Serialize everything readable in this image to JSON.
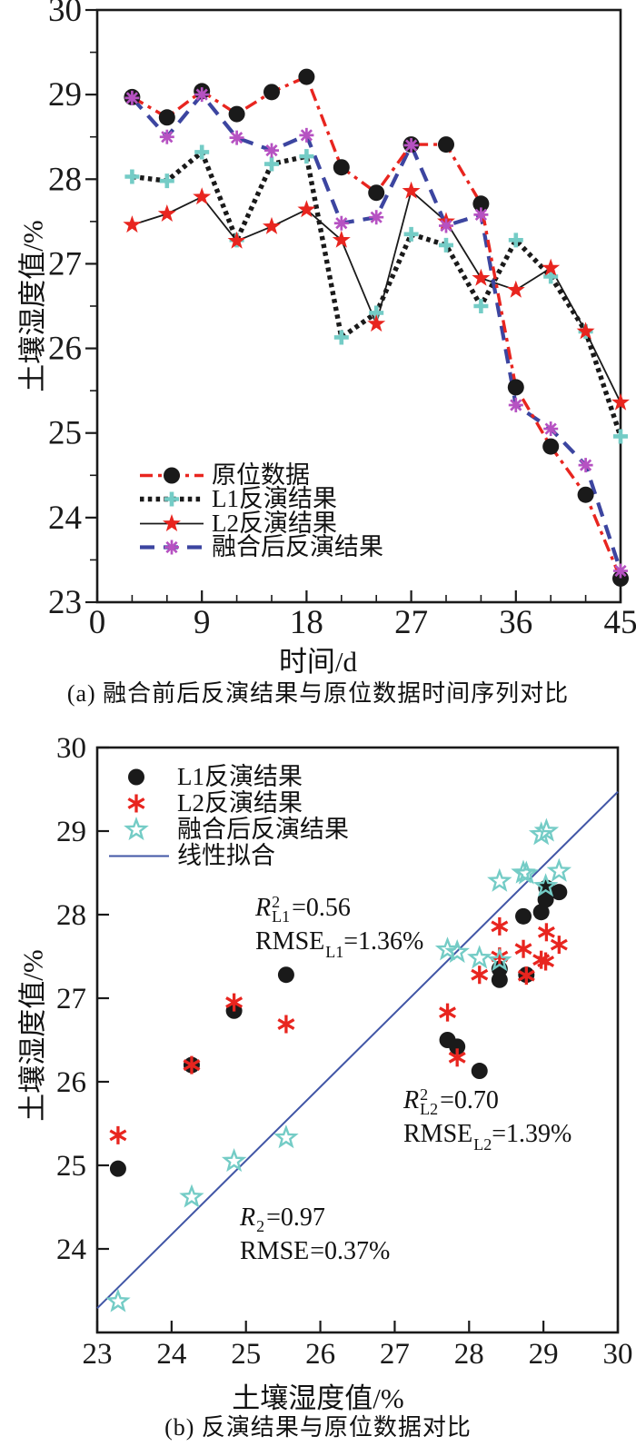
{
  "panel_a": {
    "caption": "(a) 融合前后反演结果与原位数据时间序列对比",
    "xlabel": "时间/d",
    "ylabel": "土壤湿度值/%"
  },
  "panel_b": {
    "caption": "(b) 反演结果与原位数据对比",
    "xlabel": "土壤湿度值/%",
    "ylabel": "土壤湿度值/%",
    "annotations": [
      {
        "r": "R",
        "sup": "2",
        "sub": "L1",
        "r_eq": "=0.56",
        "rmse": "RMSE",
        "rmse_sub": "L1",
        "rmse_eq": "=1.36%"
      },
      {
        "r": "R",
        "sup": "2",
        "sub": "L2",
        "r_eq": "=0.70",
        "rmse": "RMSE",
        "rmse_sub": "L2",
        "rmse_eq": "=1.39%"
      },
      {
        "r": "R",
        "sup": "2",
        "sub": "",
        "r_eq": "=0.97",
        "rmse": "RMSE",
        "rmse_sub": "",
        "rmse_eq": "=0.37%"
      }
    ]
  },
  "colors": {
    "black": "#1a1a1a",
    "red": "#e8251f",
    "blue_dash": "#3c45a0",
    "magenta": "#b652c2",
    "cyan": "#74ccc6",
    "fit_line": "#4156a6"
  },
  "chart_data": [
    {
      "type": "line",
      "title": "(a) 融合前后反演结果与原位数据时间序列对比",
      "xlabel": "时间/d",
      "ylabel": "土壤湿度值/%",
      "xlim": [
        0,
        45
      ],
      "ylim": [
        23,
        30
      ],
      "xticks": [
        0,
        9,
        18,
        27,
        36,
        45
      ],
      "xminor_step": 3,
      "yticks": [
        23,
        24,
        25,
        26,
        27,
        28,
        29,
        30
      ],
      "yminor_step": 0.5,
      "grid": false,
      "legend_position": "lower-left",
      "x": [
        3,
        6,
        9,
        12,
        15,
        18,
        21,
        24,
        27,
        30,
        33,
        36,
        39,
        42,
        45
      ],
      "series": [
        {
          "name": "原位数据",
          "marker": "circle",
          "marker_color": "#1a1a1a",
          "line_color": "#e8251f",
          "line_style": "dashdot",
          "values": [
            28.97,
            28.73,
            29.04,
            28.77,
            29.03,
            29.21,
            28.14,
            27.84,
            28.41,
            28.41,
            27.71,
            25.54,
            24.84,
            24.27,
            23.28
          ]
        },
        {
          "name": "L1反演结果",
          "marker": "plus",
          "marker_color": "#74ccc6",
          "line_color": "#1a1a1a",
          "line_style": "dotted",
          "values": [
            28.03,
            27.98,
            28.32,
            27.28,
            28.18,
            28.27,
            26.13,
            26.42,
            27.35,
            27.22,
            26.5,
            27.28,
            26.85,
            26.2,
            24.96
          ]
        },
        {
          "name": "L2反演结果",
          "marker": "star",
          "marker_color": "#e8251f",
          "line_color": "#1a1a1a",
          "line_style": "solid",
          "values": [
            27.46,
            27.59,
            27.79,
            27.27,
            27.44,
            27.64,
            27.28,
            26.29,
            27.86,
            27.5,
            26.83,
            26.69,
            26.95,
            26.2,
            25.36
          ]
        },
        {
          "name": "融合后反演结果",
          "marker": "asterisk8",
          "marker_color": "#b652c2",
          "line_color": "#3c45a0",
          "line_style": "dashed",
          "values": [
            28.96,
            28.5,
            29.0,
            28.49,
            28.34,
            28.52,
            27.48,
            27.55,
            28.4,
            27.45,
            27.58,
            25.33,
            25.05,
            24.62,
            23.37
          ]
        }
      ]
    },
    {
      "type": "scatter",
      "title": "(b) 反演结果与原位数据对比",
      "xlabel": "土壤湿度值/%",
      "ylabel": "土壤湿度值/%",
      "xlim": [
        23,
        30
      ],
      "ylim": [
        23,
        30
      ],
      "xticks": [
        23,
        24,
        25,
        26,
        27,
        28,
        29,
        30
      ],
      "yticks": [
        24,
        25,
        26,
        27,
        28,
        29,
        30
      ],
      "grid": false,
      "legend_position": "upper-left",
      "x_in_situ": [
        28.97,
        28.73,
        29.04,
        28.77,
        29.03,
        29.21,
        28.14,
        27.84,
        28.41,
        28.41,
        27.71,
        25.54,
        24.84,
        24.27,
        23.28
      ],
      "series": [
        {
          "name": "L1反演结果",
          "marker": "circle",
          "color": "#1a1a1a",
          "y": [
            28.03,
            27.98,
            28.32,
            27.28,
            28.18,
            28.27,
            26.13,
            26.42,
            27.35,
            27.22,
            26.5,
            27.28,
            26.85,
            26.2,
            24.96
          ]
        },
        {
          "name": "L2反演结果",
          "marker": "asterisk6",
          "color": "#e8251f",
          "y": [
            27.46,
            27.59,
            27.79,
            27.27,
            27.44,
            27.64,
            27.28,
            26.29,
            27.86,
            27.5,
            26.83,
            26.69,
            26.95,
            26.2,
            25.36
          ]
        },
        {
          "name": "融合后反演结果",
          "marker": "star-open",
          "color": "#74ccc6",
          "y": [
            28.96,
            28.5,
            29.0,
            28.49,
            28.34,
            28.52,
            27.48,
            27.55,
            28.4,
            27.45,
            27.58,
            25.33,
            25.05,
            24.62,
            23.37
          ]
        },
        {
          "name": "线性拟合",
          "marker": "line",
          "color": "#4156a6",
          "fit_line": {
            "x1": 23,
            "y1": 23.29,
            "x2": 30,
            "y2": 29.47
          }
        }
      ],
      "stats": [
        {
          "series": "L1",
          "r2": 0.56,
          "rmse_pct": 1.36
        },
        {
          "series": "L2",
          "r2": 0.7,
          "rmse_pct": 1.39
        },
        {
          "series": "融合后",
          "r2": 0.97,
          "rmse_pct": 0.37
        }
      ]
    }
  ]
}
